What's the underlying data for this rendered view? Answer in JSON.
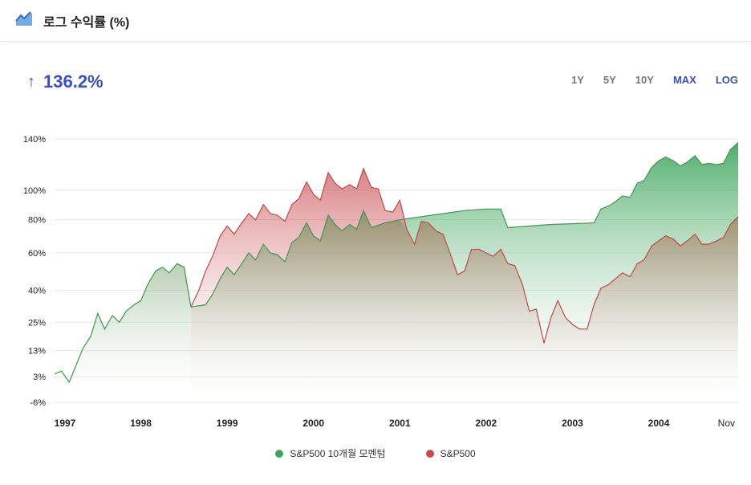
{
  "header": {
    "title": "로그 수익률 (%)",
    "icon": "line-chart-icon"
  },
  "summary": {
    "arrow": "↑",
    "value": "136.2%",
    "color": "#3b4fc4"
  },
  "ranges": [
    {
      "label": "1Y",
      "active": false
    },
    {
      "label": "5Y",
      "active": false
    },
    {
      "label": "10Y",
      "active": false
    },
    {
      "label": "MAX",
      "active": true
    },
    {
      "label": "LOG",
      "active": true
    }
  ],
  "legend": [
    {
      "label": "S&P500 10개월 모멘텀",
      "color": "#3aa65a"
    },
    {
      "label": "S&P500",
      "color": "#c84a4f"
    }
  ],
  "chart_data": {
    "type": "area",
    "log_scale": true,
    "y_ticks": [
      {
        "value": 140,
        "label": "140%"
      },
      {
        "value": 100,
        "label": "100%"
      },
      {
        "value": 80,
        "label": "80%"
      },
      {
        "value": 60,
        "label": "60%"
      },
      {
        "value": 40,
        "label": "40%"
      },
      {
        "value": 25,
        "label": "25%"
      },
      {
        "value": 13,
        "label": "13%"
      },
      {
        "value": 3,
        "label": "3%"
      },
      {
        "value": -6,
        "label": "-6%"
      }
    ],
    "x_ticks": [
      {
        "t": 1997.0,
        "label": "1997"
      },
      {
        "t": 1998.0,
        "label": "1998"
      },
      {
        "t": 1999.0,
        "label": "1999"
      },
      {
        "t": 2000.0,
        "label": "2000"
      },
      {
        "t": 2001.0,
        "label": "2001"
      },
      {
        "t": 2002.0,
        "label": "2002"
      },
      {
        "t": 2003.0,
        "label": "2003"
      },
      {
        "t": 2004.0,
        "label": "2004"
      },
      {
        "t": 2004.83,
        "label": "Nov"
      }
    ],
    "grid": true,
    "legend_position": "bottom",
    "series": [
      {
        "name": "S&P500 10개월 모멘텀",
        "color": "#3aa65a",
        "points": [
          [
            1997.0,
            4
          ],
          [
            1997.08,
            5
          ],
          [
            1997.17,
            1
          ],
          [
            1997.33,
            14
          ],
          [
            1997.42,
            19
          ],
          [
            1997.5,
            29
          ],
          [
            1997.58,
            22
          ],
          [
            1997.67,
            28
          ],
          [
            1997.75,
            25
          ],
          [
            1997.83,
            30
          ],
          [
            1997.92,
            33
          ],
          [
            1998.0,
            35
          ],
          [
            1998.08,
            43
          ],
          [
            1998.17,
            50
          ],
          [
            1998.25,
            52
          ],
          [
            1998.33,
            49
          ],
          [
            1998.42,
            54
          ],
          [
            1998.5,
            52
          ],
          [
            1998.58,
            32
          ],
          [
            1998.75,
            33
          ],
          [
            1998.83,
            38
          ],
          [
            1998.92,
            46
          ],
          [
            1999.0,
            52
          ],
          [
            1999.08,
            48
          ],
          [
            1999.17,
            54
          ],
          [
            1999.25,
            60
          ],
          [
            1999.33,
            56
          ],
          [
            1999.42,
            65
          ],
          [
            1999.5,
            60
          ],
          [
            1999.58,
            59
          ],
          [
            1999.67,
            55
          ],
          [
            1999.75,
            66
          ],
          [
            1999.83,
            69
          ],
          [
            1999.92,
            78
          ],
          [
            2000.0,
            70
          ],
          [
            2000.08,
            67
          ],
          [
            2000.17,
            83
          ],
          [
            2000.25,
            77
          ],
          [
            2000.33,
            73
          ],
          [
            2000.42,
            77
          ],
          [
            2000.5,
            74
          ],
          [
            2000.58,
            86
          ],
          [
            2000.67,
            75
          ],
          [
            2000.83,
            78
          ],
          [
            2001.0,
            80
          ],
          [
            2001.25,
            82
          ],
          [
            2001.5,
            84
          ],
          [
            2001.75,
            86
          ],
          [
            2002.0,
            87
          ],
          [
            2002.17,
            87
          ],
          [
            2002.25,
            75
          ],
          [
            2002.5,
            76
          ],
          [
            2002.75,
            77
          ],
          [
            2003.0,
            77.5
          ],
          [
            2003.25,
            78
          ],
          [
            2003.33,
            87
          ],
          [
            2003.42,
            89
          ],
          [
            2003.5,
            92
          ],
          [
            2003.58,
            96
          ],
          [
            2003.67,
            95
          ],
          [
            2003.75,
            105
          ],
          [
            2003.83,
            107
          ],
          [
            2003.92,
            117
          ],
          [
            2004.0,
            122
          ],
          [
            2004.08,
            125
          ],
          [
            2004.17,
            122
          ],
          [
            2004.25,
            118
          ],
          [
            2004.33,
            121
          ],
          [
            2004.42,
            126
          ],
          [
            2004.5,
            119
          ],
          [
            2004.58,
            120
          ],
          [
            2004.67,
            119
          ],
          [
            2004.75,
            120
          ],
          [
            2004.83,
            131
          ],
          [
            2004.92,
            137
          ]
        ]
      },
      {
        "name": "S&P500",
        "color": "#c84a4f",
        "points": [
          [
            1998.58,
            32
          ],
          [
            1998.67,
            40
          ],
          [
            1998.75,
            50
          ],
          [
            1998.83,
            58
          ],
          [
            1998.92,
            70
          ],
          [
            1999.0,
            76
          ],
          [
            1999.08,
            71
          ],
          [
            1999.17,
            78
          ],
          [
            1999.25,
            84
          ],
          [
            1999.33,
            80
          ],
          [
            1999.42,
            90
          ],
          [
            1999.5,
            84
          ],
          [
            1999.58,
            83
          ],
          [
            1999.67,
            79
          ],
          [
            1999.75,
            90
          ],
          [
            1999.83,
            94
          ],
          [
            1999.92,
            106
          ],
          [
            2000.0,
            97
          ],
          [
            2000.08,
            93
          ],
          [
            2000.17,
            113
          ],
          [
            2000.25,
            105
          ],
          [
            2000.33,
            101
          ],
          [
            2000.42,
            104
          ],
          [
            2000.5,
            101
          ],
          [
            2000.58,
            116
          ],
          [
            2000.67,
            102
          ],
          [
            2000.75,
            101
          ],
          [
            2000.83,
            86
          ],
          [
            2000.92,
            85
          ],
          [
            2001.0,
            93
          ],
          [
            2001.08,
            74
          ],
          [
            2001.17,
            65
          ],
          [
            2001.25,
            79
          ],
          [
            2001.33,
            78
          ],
          [
            2001.42,
            73
          ],
          [
            2001.5,
            71
          ],
          [
            2001.58,
            60
          ],
          [
            2001.67,
            48
          ],
          [
            2001.75,
            50
          ],
          [
            2001.83,
            62
          ],
          [
            2001.92,
            62
          ],
          [
            2002.0,
            60
          ],
          [
            2002.08,
            58
          ],
          [
            2002.17,
            62
          ],
          [
            2002.25,
            54
          ],
          [
            2002.33,
            53
          ],
          [
            2002.42,
            43
          ],
          [
            2002.5,
            30
          ],
          [
            2002.58,
            31
          ],
          [
            2002.67,
            16
          ],
          [
            2002.75,
            27
          ],
          [
            2002.83,
            35
          ],
          [
            2002.92,
            27
          ],
          [
            2003.0,
            24
          ],
          [
            2003.08,
            22
          ],
          [
            2003.17,
            22
          ],
          [
            2003.25,
            33
          ],
          [
            2003.33,
            41
          ],
          [
            2003.42,
            43
          ],
          [
            2003.5,
            46
          ],
          [
            2003.58,
            49
          ],
          [
            2003.67,
            47
          ],
          [
            2003.75,
            54
          ],
          [
            2003.83,
            56
          ],
          [
            2003.92,
            64
          ],
          [
            2004.0,
            67
          ],
          [
            2004.08,
            70
          ],
          [
            2004.17,
            68
          ],
          [
            2004.25,
            64
          ],
          [
            2004.33,
            67
          ],
          [
            2004.42,
            71
          ],
          [
            2004.5,
            65
          ],
          [
            2004.58,
            65
          ],
          [
            2004.67,
            67
          ],
          [
            2004.75,
            69
          ],
          [
            2004.83,
            77
          ],
          [
            2004.92,
            82
          ]
        ]
      }
    ]
  }
}
